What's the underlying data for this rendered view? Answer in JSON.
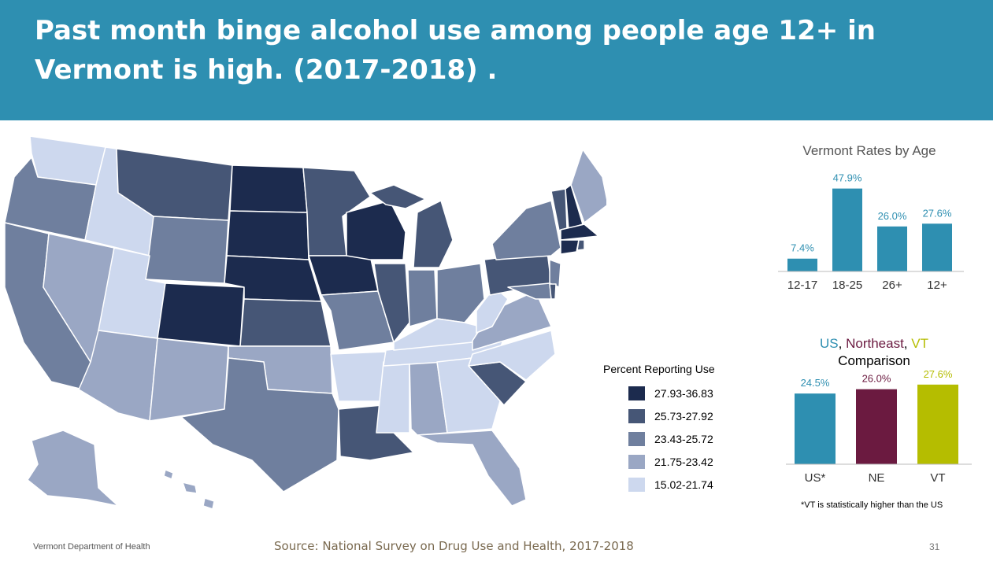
{
  "header": {
    "title": "Past month binge alcohol use among people age 12+ in Vermont is high. (2017-2018) ."
  },
  "map": {
    "legend_title": "Percent Reporting  Use",
    "legend": [
      {
        "label": "27.93-36.83",
        "color": "#1c2b4e"
      },
      {
        "label": "25.73-27.92",
        "color": "#465676"
      },
      {
        "label": "23.43-25.72",
        "color": "#6f7f9e"
      },
      {
        "label": "21.75-23.42",
        "color": "#9aa7c4"
      },
      {
        "label": "15.02-21.74",
        "color": "#cdd8ee"
      }
    ]
  },
  "chart_data": [
    {
      "type": "bar",
      "title": "Vermont Rates by Age",
      "categories": [
        "12-17",
        "18-25",
        "26+",
        "12+"
      ],
      "values": [
        7.4,
        47.9,
        26.0,
        27.6
      ],
      "value_labels": [
        "7.4%",
        "47.9%",
        "26.0%",
        "27.6%"
      ],
      "color": "#2e8fb1",
      "ylim": [
        0,
        50
      ]
    },
    {
      "type": "bar",
      "title_parts": [
        {
          "text": "US",
          "color": "#2e8fb1"
        },
        {
          "text": ", ",
          "color": "#000000"
        },
        {
          "text": "Northeast",
          "color": "#6b1a40"
        },
        {
          "text": ", ",
          "color": "#000000"
        },
        {
          "text": "VT",
          "color": "#b5bd00"
        }
      ],
      "subtitle": "Comparison",
      "categories": [
        "US*",
        "NE",
        "VT"
      ],
      "values": [
        24.5,
        26.0,
        27.6
      ],
      "value_labels": [
        "24.5%",
        "26.0%",
        "27.6%"
      ],
      "colors": [
        "#2e8fb1",
        "#6b1a40",
        "#b5bd00"
      ],
      "ylim": [
        0,
        30
      ],
      "footnote": "*VT is statistically higher than the US"
    }
  ],
  "footer": {
    "org": "Vermont Department of Health",
    "source": "Source: National Survey on Drug Use and Health, 2017-2018",
    "page": "31"
  }
}
